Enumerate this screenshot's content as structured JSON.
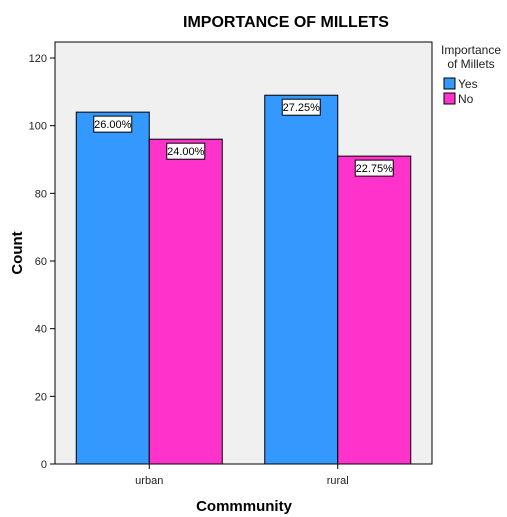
{
  "chart_data": {
    "type": "bar",
    "title": "IMPORTANCE OF MILLETS",
    "xlabel": "Commmunity",
    "ylabel": "Count",
    "categories": [
      "urban",
      "rural"
    ],
    "ylim": [
      0,
      120
    ],
    "yticks": [
      0,
      20,
      40,
      60,
      80,
      100,
      120
    ],
    "grid": false,
    "legend": {
      "title_lines": [
        "Importance",
        "of Millets"
      ],
      "placement": "top-right outside"
    },
    "series": [
      {
        "name": "Yes",
        "color": "#3399ff",
        "values": [
          104,
          109
        ],
        "labels": [
          "26.00%",
          "27.25%"
        ]
      },
      {
        "name": "No",
        "color": "#ff33cc",
        "values": [
          96,
          91
        ],
        "labels": [
          "24.00%",
          "22.75%"
        ]
      }
    ],
    "plot_background": "#f0f0f0"
  }
}
